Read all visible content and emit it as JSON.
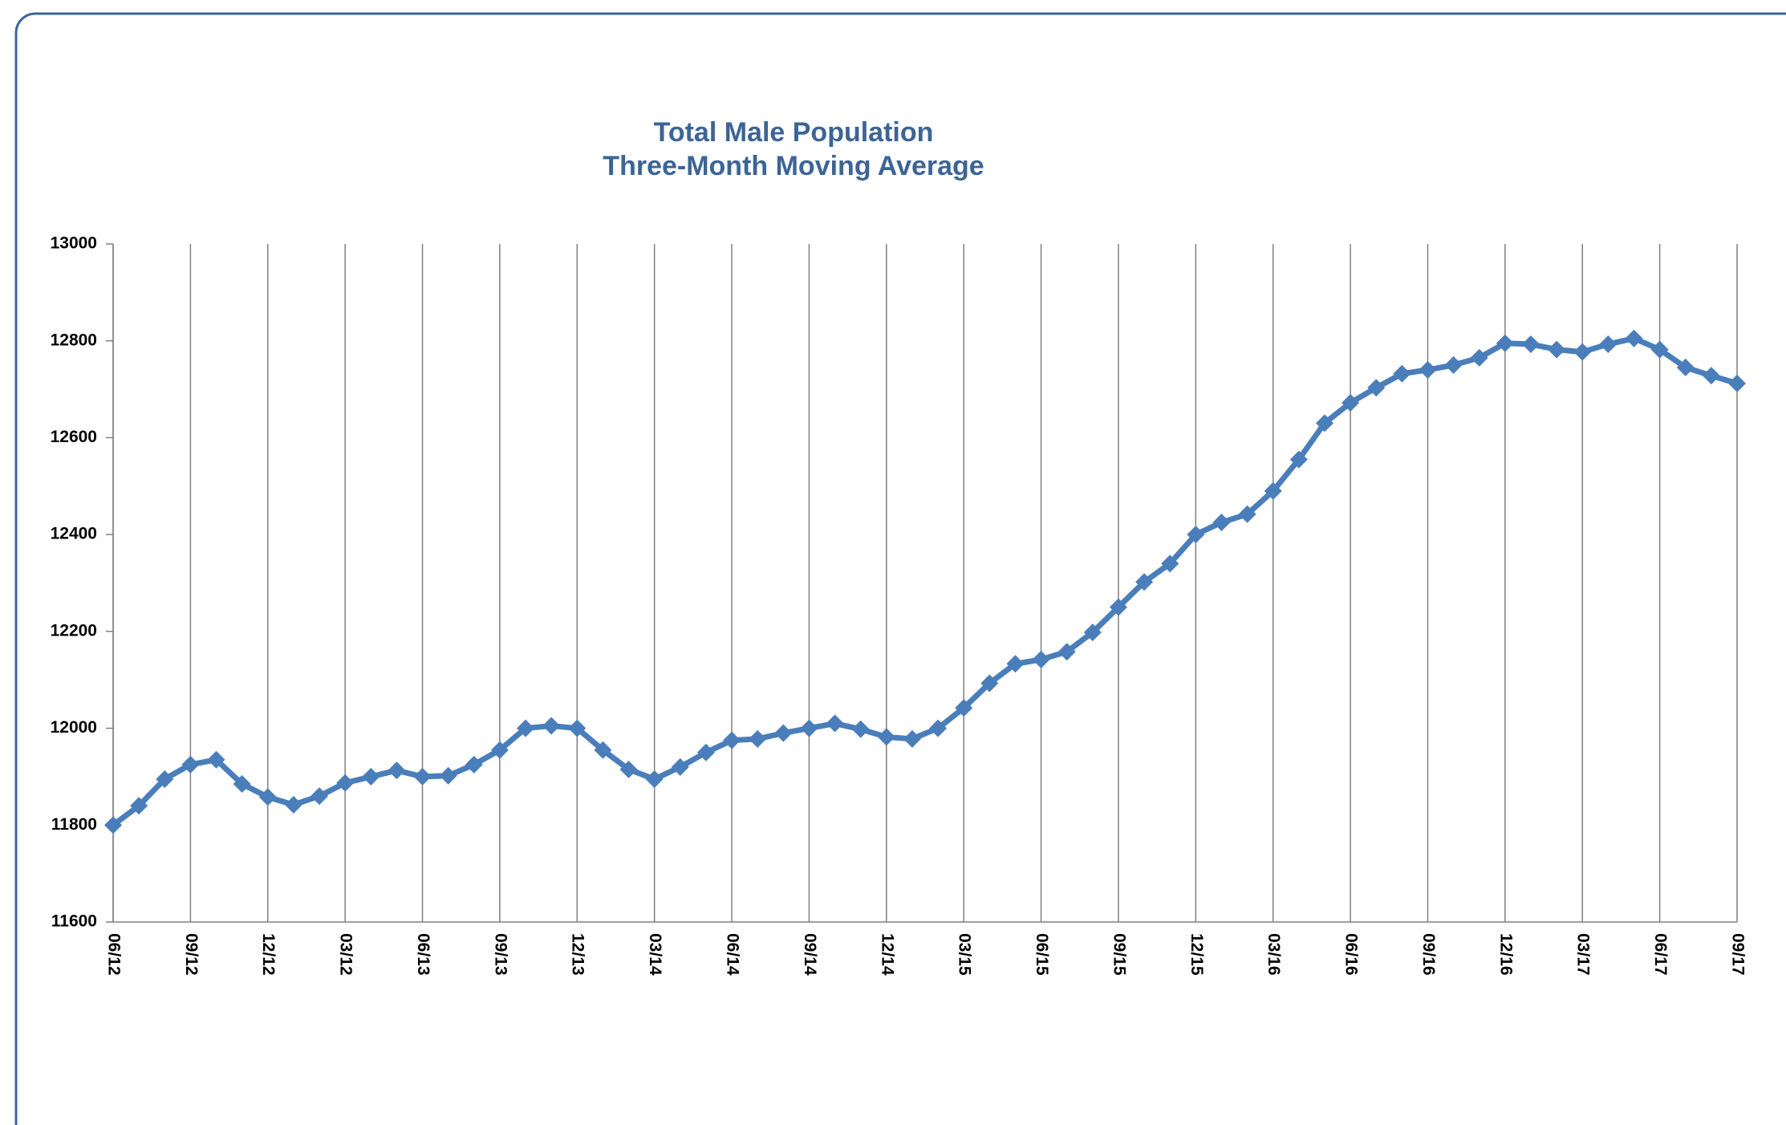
{
  "chart_data": {
    "type": "line",
    "title": [
      "Total Male Population",
      "Three-Month Moving Average"
    ],
    "categories": [
      "06/12",
      null,
      null,
      "09/12",
      null,
      null,
      "12/12",
      null,
      null,
      "03/12",
      null,
      null,
      "06/13",
      null,
      null,
      "09/13",
      null,
      null,
      "12/13",
      null,
      null,
      "03/14",
      null,
      null,
      "06/14",
      null,
      null,
      "09/14",
      null,
      null,
      "12/14",
      null,
      null,
      "03/15",
      null,
      null,
      "06/15",
      null,
      null,
      "09/15",
      null,
      null,
      "12/15",
      null,
      null,
      "03/16",
      null,
      null,
      "06/16",
      null,
      null,
      "09/16",
      null,
      null,
      "12/16",
      null,
      null,
      "03/17",
      null,
      null,
      "06/17",
      null,
      null,
      "09/17"
    ],
    "values": [
      11800,
      11840,
      11895,
      11925,
      11935,
      11885,
      11858,
      11842,
      11860,
      11887,
      11900,
      11913,
      11900,
      11902,
      11925,
      11955,
      12000,
      12005,
      12000,
      11955,
      11915,
      11895,
      11920,
      11950,
      11975,
      11978,
      11990,
      12000,
      12010,
      11998,
      11982,
      11978,
      12000,
      12042,
      12093,
      12133,
      12142,
      12158,
      12198,
      12250,
      12302,
      12340,
      12400,
      12425,
      12442,
      12490,
      12555,
      12630,
      12672,
      12703,
      12732,
      12740,
      12750,
      12765,
      12795,
      12793,
      12782,
      12777,
      12793,
      12805,
      12782,
      12745,
      12728,
      12712
    ],
    "color": "#4a7ebb",
    "ylim": [
      11600,
      13000
    ],
    "yticks": [
      11600,
      11800,
      12000,
      12200,
      12400,
      12600,
      12800,
      13000
    ],
    "x_grid": true
  }
}
